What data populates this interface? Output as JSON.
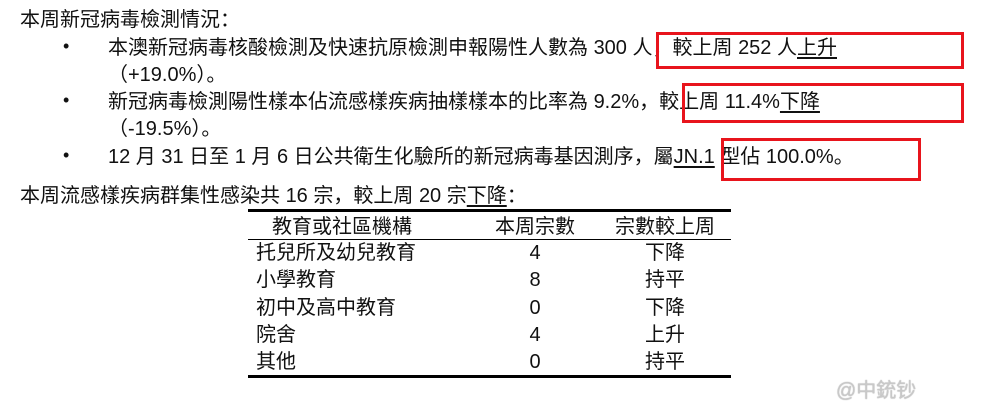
{
  "covid_heading": "本周新冠病毒檢測情況：",
  "bullets": [
    {
      "pre": "本澳新冠病毒核酸檢測及快速抗原檢測申報陽性人數為 ",
      "a": "300",
      "b": " 人，較上周 ",
      "c": "252",
      "d": " 人",
      "trend": "上升",
      "cont": "（+19.0%）。"
    },
    {
      "pre": "新冠病毒檢測陽性樣本佔流感樣疾病抽樣樣本的比率為 ",
      "a": "9.2%",
      "b": "，較上周 ",
      "c": "11.4%",
      "trend": "下降",
      "cont": "（-19.5%）。"
    },
    {
      "pre": "12 月 31 日至 1 月 6 日公共衛生化驗所的新冠病毒基因測序，屬",
      "variant": "JN.1",
      "post": " 型佔 100.0%。"
    }
  ],
  "flu_line": {
    "pre": "本周流感樣疾病群集性感染共 ",
    "count": "16",
    "mid": " 宗，較上周 ",
    "prev": "20",
    "post": " 宗",
    "trend": "下降",
    "end": "："
  },
  "table": {
    "headers": [
      "教育或社區機構",
      "本周宗數",
      "宗數較上周"
    ],
    "rows": [
      [
        "托兒所及幼兒教育",
        "4",
        "下降"
      ],
      [
        "小學教育",
        "8",
        "持平"
      ],
      [
        "初中及高中教育",
        "0",
        "下降"
      ],
      [
        "院舍",
        "4",
        "上升"
      ],
      [
        "其他",
        "0",
        "持平"
      ]
    ]
  },
  "watermark": "@中銃钞",
  "highlight_color": "#e8141c"
}
